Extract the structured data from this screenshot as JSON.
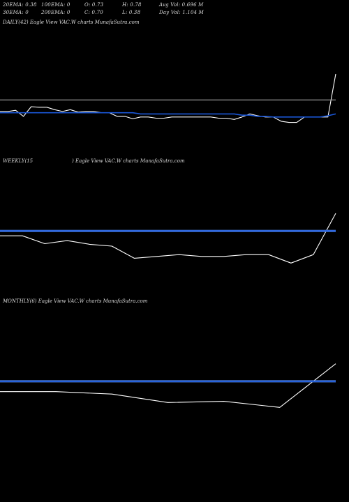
{
  "stats": {
    "row1": [
      {
        "label": "20EMA: 0.38"
      },
      {
        "label": "100EMA: 0"
      },
      {
        "label": "O: 0.73"
      },
      {
        "label": "H: 0.78"
      },
      {
        "label": "Avg Vol: 0.696  M"
      }
    ],
    "row2": [
      {
        "label": "30EMA: 0"
      },
      {
        "label": "200EMA: 0"
      },
      {
        "label": "C: 0.70"
      },
      {
        "label": "L: 0.38"
      },
      {
        "label": "Day Vol: 1.104  M"
      }
    ]
  },
  "panels": {
    "daily": {
      "label": "DAILY(42) Eagle   View  VAC.W charts MunafaSutra.com"
    },
    "weekly": {
      "label_a": "WEEKLY(15",
      "label_b": ") Eagle   View  VAC.W charts MunafaSutra.com"
    },
    "monthly": {
      "label": "MONTHLY(6) Eagle   View  VAC.W charts MunafaSutra.com"
    }
  },
  "colors": {
    "background": "#000000",
    "price": "#ffffff",
    "ema": "#1a56d6",
    "ema_light": "#5b8ef0",
    "reference": "#9a9a9a",
    "text": "#dcdcdc"
  },
  "chart_data": [
    {
      "type": "line",
      "name": "daily",
      "ylim": [
        0,
        1
      ],
      "series": [
        {
          "role": "price",
          "values": [
            0.38,
            0.38,
            0.4,
            0.3,
            0.46,
            0.45,
            0.45,
            0.41,
            0.38,
            0.41,
            0.37,
            0.38,
            0.38,
            0.36,
            0.36,
            0.3,
            0.3,
            0.26,
            0.29,
            0.29,
            0.27,
            0.27,
            0.29,
            0.29,
            0.29,
            0.29,
            0.29,
            0.29,
            0.27,
            0.27,
            0.25,
            0.29,
            0.34,
            0.31,
            0.29,
            0.29,
            0.22,
            0.2,
            0.2,
            0.29,
            0.29,
            0.29,
            0.29,
            1.0
          ]
        },
        {
          "role": "ema",
          "values": [
            0.36,
            0.36,
            0.36,
            0.36,
            0.36,
            0.36,
            0.36,
            0.36,
            0.36,
            0.36,
            0.36,
            0.36,
            0.36,
            0.36,
            0.36,
            0.36,
            0.36,
            0.36,
            0.34,
            0.34,
            0.34,
            0.34,
            0.34,
            0.34,
            0.34,
            0.34,
            0.34,
            0.34,
            0.34,
            0.34,
            0.34,
            0.32,
            0.32,
            0.3,
            0.3,
            0.29,
            0.29,
            0.29,
            0.29,
            0.29,
            0.29,
            0.29,
            0.31,
            0.34
          ]
        },
        {
          "role": "reference",
          "values": [
            0.57,
            0.57
          ]
        }
      ]
    },
    {
      "type": "line",
      "name": "weekly",
      "ylim": [
        0,
        1
      ],
      "series": [
        {
          "role": "price",
          "values": [
            0.63,
            0.63,
            0.5,
            0.55,
            0.49,
            0.46,
            0.26,
            0.29,
            0.32,
            0.29,
            0.29,
            0.32,
            0.32,
            0.18,
            0.32,
            1.0
          ]
        },
        {
          "role": "ema",
          "values": [
            0.71,
            0.71
          ]
        }
      ]
    },
    {
      "type": "line",
      "name": "monthly",
      "ylim": [
        0,
        1
      ],
      "series": [
        {
          "role": "price",
          "values": [
            0.36,
            0.36,
            0.32,
            0.18,
            0.2,
            0.1,
            0.82
          ]
        },
        {
          "role": "ema",
          "values": [
            0.53,
            0.53
          ]
        }
      ]
    }
  ]
}
